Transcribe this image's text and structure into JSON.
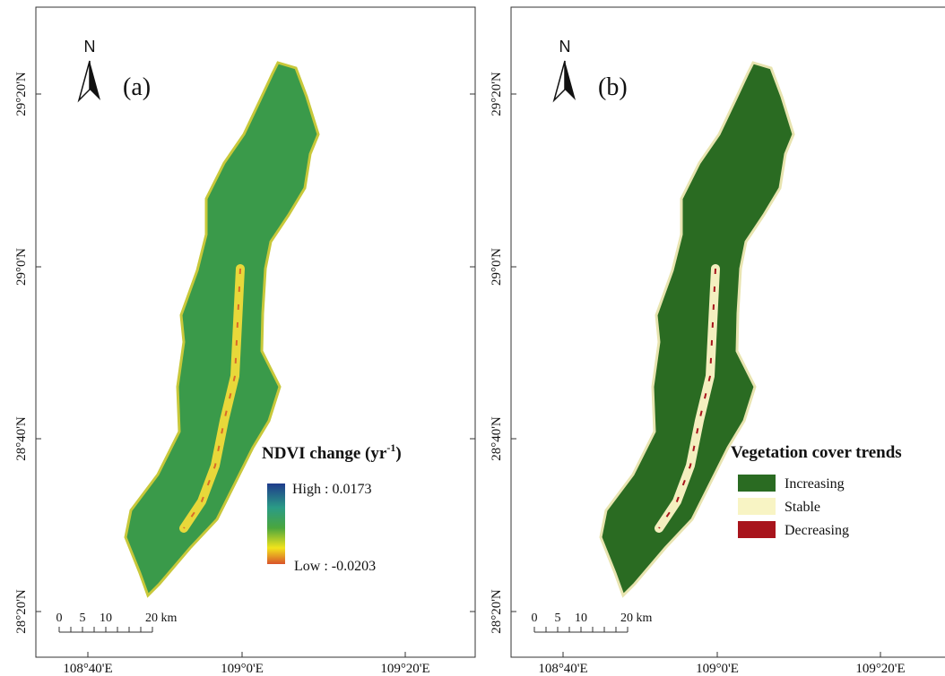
{
  "panels": [
    {
      "north": "N",
      "label": "(a)",
      "lat_labels": [
        "29°20'N",
        "29°0'N",
        "28°40'N",
        "28°20'N"
      ],
      "lon_labels": [
        "108°40'E",
        "109°0'E",
        "109°20'E"
      ],
      "scale_labels": [
        "0",
        "5",
        "10",
        "20 km"
      ],
      "legend": {
        "title": "NDVI change (yr",
        "title_sup": "-1",
        "title_end": ")",
        "high": "High : 0.0173",
        "low": "Low : -0.0203"
      }
    },
    {
      "north": "N",
      "label": "(b)",
      "lat_labels": [
        "29°20'N",
        "29°0'N",
        "28°40'N",
        "28°20'N"
      ],
      "lon_labels": [
        "108°40'E",
        "109°0'E",
        "109°20'E"
      ],
      "scale_labels": [
        "0",
        "5",
        "10",
        "20 km"
      ],
      "legend": {
        "title": "Vegetation cover trends",
        "items": [
          {
            "label": "Increasing",
            "color": "#2a6b22"
          },
          {
            "label": "Stable",
            "color": "#f8f4c4"
          },
          {
            "label": "Decreasing",
            "color": "#a8141c"
          }
        ]
      }
    }
  ]
}
